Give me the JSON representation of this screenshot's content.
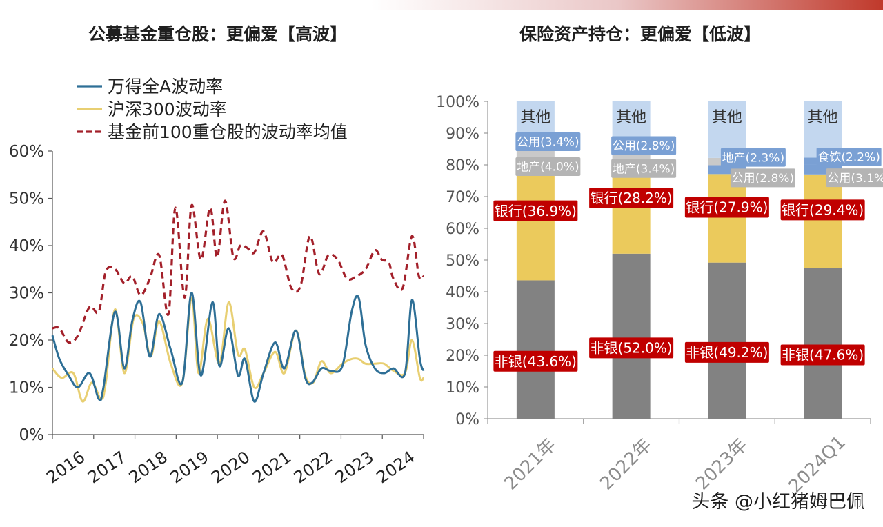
{
  "left_title": "公募基金重仓股：更偏爱【高波】",
  "right_title": "保险资产持仓：更偏爱【低波】",
  "watermark": "头条 @小红猪姆巴佩",
  "colors": {
    "wind_a": "#2e6f96",
    "hs300": "#e8cf72",
    "fund_top100": "#a3202a",
    "non_bank": "#828282",
    "bank": "#ebca5c",
    "property": "#c9c9c9",
    "utilities": "#7aa0d4",
    "food_beverage": "#7aa0d4",
    "other": "#c3d7ef",
    "label_red_bg": "#c00000",
    "label_gray_bg": "#b4b4b4",
    "label_blue_bg": "#7aa0d4"
  },
  "chart_data": [
    {
      "type": "line",
      "title": "公募基金重仓股：更偏爱【高波】",
      "ylim": [
        0,
        60
      ],
      "y_ticks": [
        "0%",
        "10%",
        "20%",
        "30%",
        "40%",
        "50%",
        "60%"
      ],
      "x_ticks": [
        "2016",
        "2017",
        "2018",
        "2019",
        "2020",
        "2021",
        "2022",
        "2023",
        "2024"
      ],
      "xlim": [
        2016.0,
        2024.0
      ],
      "legend_position": "top-left",
      "series": [
        {
          "name": "万得全A波动率",
          "x": [
            2016.0,
            2016.15,
            2016.35,
            2016.55,
            2016.8,
            2017.0,
            2017.1,
            2017.35,
            2017.55,
            2017.72,
            2017.9,
            2018.1,
            2018.3,
            2018.55,
            2018.8,
            2019.0,
            2019.2,
            2019.45,
            2019.6,
            2019.8,
            2020.0,
            2020.15,
            2020.35,
            2020.55,
            2020.8,
            2021.0,
            2021.25,
            2021.45,
            2021.6,
            2021.8,
            2022.0,
            2022.25,
            2022.45,
            2022.6,
            2022.75,
            2022.95,
            2023.15,
            2023.35,
            2023.6,
            2023.75,
            2023.92,
            2024.0
          ],
          "y": [
            21,
            16,
            12.5,
            10,
            13,
            7.5,
            10,
            26,
            14,
            24,
            28,
            16.5,
            25.5,
            18,
            11,
            30,
            12.5,
            28,
            14.5,
            22.5,
            12.5,
            16,
            7,
            13,
            19.5,
            14,
            22,
            12,
            11,
            14,
            13.5,
            14.5,
            26,
            29,
            19,
            14,
            13,
            14,
            13,
            28.5,
            16,
            13.5
          ]
        },
        {
          "name": "沪深300波动率",
          "x": [
            2016.0,
            2016.2,
            2016.45,
            2016.65,
            2016.85,
            2017.05,
            2017.15,
            2017.35,
            2017.55,
            2017.75,
            2017.95,
            2018.12,
            2018.3,
            2018.55,
            2018.8,
            2019.0,
            2019.15,
            2019.35,
            2019.6,
            2019.8,
            2020.0,
            2020.15,
            2020.35,
            2020.55,
            2020.8,
            2021.0,
            2021.25,
            2021.45,
            2021.62,
            2021.8,
            2022.0,
            2022.25,
            2022.45,
            2022.6,
            2022.75,
            2022.95,
            2023.15,
            2023.35,
            2023.6,
            2023.75,
            2023.92,
            2024.0
          ],
          "y": [
            14,
            12,
            13,
            7,
            11,
            7.5,
            11,
            26.5,
            13,
            24.5,
            23.5,
            16.5,
            24,
            15,
            11,
            29,
            13,
            24.5,
            15,
            28,
            17,
            18,
            10,
            13,
            17.5,
            13,
            22,
            12.5,
            11,
            15.5,
            13,
            15,
            16,
            16,
            15,
            15,
            15,
            13.5,
            13,
            20,
            12,
            12
          ]
        },
        {
          "name": "基金前100重仓股的波动率均值",
          "x": [
            2016.0,
            2016.15,
            2016.35,
            2016.55,
            2016.8,
            2017.0,
            2017.15,
            2017.35,
            2017.55,
            2017.72,
            2017.9,
            2018.1,
            2018.3,
            2018.5,
            2018.65,
            2018.85,
            2019.0,
            2019.2,
            2019.4,
            2019.55,
            2019.72,
            2019.9,
            2020.05,
            2020.2,
            2020.35,
            2020.55,
            2020.75,
            2020.95,
            2021.15,
            2021.35,
            2021.55,
            2021.75,
            2021.95,
            2022.15,
            2022.35,
            2022.55,
            2022.75,
            2022.95,
            2023.1,
            2023.25,
            2023.35,
            2023.55,
            2023.75,
            2023.9,
            2024.0
          ],
          "y": [
            22.5,
            22.5,
            19.5,
            21,
            27,
            26,
            34.5,
            35,
            32,
            33.5,
            29.5,
            33,
            38,
            25.5,
            48,
            29,
            48.5,
            37,
            48,
            37.5,
            49.5,
            37.5,
            40,
            39.5,
            38.5,
            43,
            36.5,
            38,
            31,
            31.5,
            42,
            34,
            38,
            37,
            33,
            33.5,
            35,
            39,
            37,
            36.5,
            33,
            31,
            42,
            33.5,
            33.5
          ]
        }
      ]
    },
    {
      "type": "bar",
      "stacked": true,
      "title": "保险资产持仓：更偏爱【低波】",
      "ylim": [
        0,
        100
      ],
      "y_ticks": [
        "0%",
        "10%",
        "20%",
        "30%",
        "40%",
        "50%",
        "60%",
        "70%",
        "80%",
        "90%",
        "100%"
      ],
      "categories": [
        "2021年",
        "2022年",
        "2023年",
        "2024Q1"
      ],
      "series": [
        {
          "name": "非银",
          "values": [
            43.6,
            52.0,
            49.2,
            47.6
          ],
          "labels": [
            "非银(43.6%)",
            "非银(52.0%)",
            "非银(49.2%)",
            "非银(47.6%)"
          ]
        },
        {
          "name": "银行",
          "values": [
            36.9,
            28.2,
            27.9,
            29.4
          ],
          "labels": [
            "银行(36.9%)",
            "银行(28.2%)",
            "银行(27.9%)",
            "银行(29.4%)"
          ]
        },
        {
          "name": "地产/公用",
          "values": [
            4.0,
            3.4,
            2.8,
            3.1
          ],
          "labels": [
            "地产(4.0%)",
            "地产(3.4%)",
            "公用(2.8%)",
            "公用(3.1%)"
          ]
        },
        {
          "name": "公用/地产/食饮",
          "values": [
            3.4,
            2.8,
            2.3,
            2.2
          ],
          "labels": [
            "公用(3.4%)",
            "公用(2.8%)",
            "地产(2.3%)",
            "食饮(2.2%)"
          ]
        },
        {
          "name": "其他",
          "values": [
            12.1,
            13.6,
            17.8,
            17.7
          ],
          "labels": [
            "其他",
            "其他",
            "其他",
            "其他"
          ]
        }
      ]
    }
  ]
}
